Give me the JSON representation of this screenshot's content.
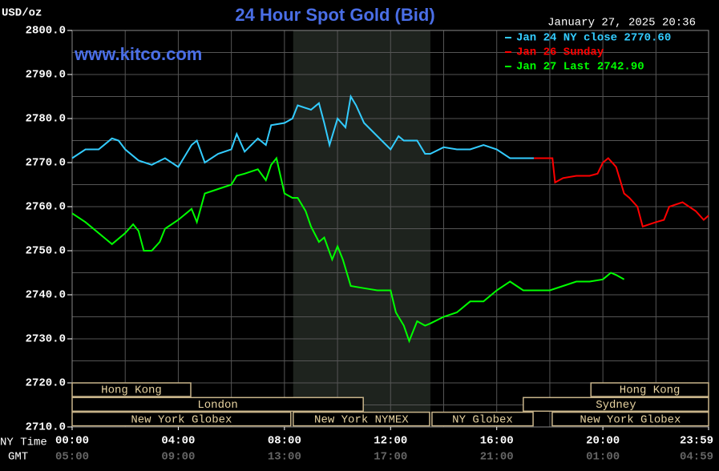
{
  "chart_data": {
    "type": "line",
    "title": "24 Hour Spot Gold (Bid)",
    "y_label": "USD/oz",
    "timestamp": "January 27, 2025 20:36",
    "watermark": "www.kitco.com",
    "x_label": "NY Time",
    "x2_label": "GMT",
    "xlim": [
      0,
      23.983
    ],
    "ylim": [
      2710,
      2800
    ],
    "xticks": [
      {
        "value": 0,
        "label": "00:00"
      },
      {
        "value": 4,
        "label": "04:00"
      },
      {
        "value": 8,
        "label": "08:00"
      },
      {
        "value": 12,
        "label": "12:00"
      },
      {
        "value": 16,
        "label": "16:00"
      },
      {
        "value": 20,
        "label": "20:00"
      },
      {
        "value": 23.983,
        "label": "23:59"
      }
    ],
    "x2ticks": [
      {
        "value": 0,
        "label": "05:00"
      },
      {
        "value": 4,
        "label": "09:00"
      },
      {
        "value": 8,
        "label": "13:00"
      },
      {
        "value": 12,
        "label": "17:00"
      },
      {
        "value": 16,
        "label": "21:00"
      },
      {
        "value": 20,
        "label": "01:00"
      },
      {
        "value": 23.983,
        "label": "04:59"
      }
    ],
    "yticks": [
      {
        "value": 2710,
        "label": "2710.0"
      },
      {
        "value": 2720,
        "label": "2720.0"
      },
      {
        "value": 2730,
        "label": "2730.0"
      },
      {
        "value": 2740,
        "label": "2740.0"
      },
      {
        "value": 2750,
        "label": "2750.0"
      },
      {
        "value": 2760,
        "label": "2760.0"
      },
      {
        "value": 2770,
        "label": "2770.0"
      },
      {
        "value": 2780,
        "label": "2780.0"
      },
      {
        "value": 2790,
        "label": "2790.0"
      },
      {
        "value": 2800,
        "label": "2800.0"
      }
    ],
    "x_grid": [
      2,
      4,
      6,
      8,
      10,
      12,
      14,
      16,
      18,
      20,
      22
    ],
    "y_grid": [
      2715,
      2720,
      2725,
      2730,
      2735,
      2740,
      2745,
      2750,
      2755,
      2760,
      2765,
      2770,
      2775,
      2780,
      2785,
      2790,
      2795
    ],
    "grid": true,
    "shaded_range": [
      8.33,
      13.5
    ],
    "sessions": [
      {
        "label": "Hong Kong",
        "row": 0,
        "start": 0,
        "end": 4.47
      },
      {
        "label": "Hong Kong",
        "row": 0,
        "start": 19.55,
        "end": 23.983
      },
      {
        "label": "London",
        "row": 1,
        "start": 0,
        "end": 10.97
      },
      {
        "label": "Sydney",
        "row": 1,
        "start": 17.0,
        "end": 23.983
      },
      {
        "label": "New York Globex",
        "row": 2,
        "start": 0,
        "end": 8.24
      },
      {
        "label": "New York NYMEX",
        "row": 2,
        "start": 8.33,
        "end": 13.47
      },
      {
        "label": "NY Globex",
        "row": 2,
        "start": 13.56,
        "end": 17.37
      },
      {
        "label": "New York Globex",
        "row": 2,
        "start": 18.09,
        "end": 23.983
      }
    ],
    "series": [
      {
        "name": "Jan 24 NY close 2770.60",
        "color": "#33ccff",
        "x": [
          0,
          0.5,
          1,
          1.5,
          1.75,
          2,
          2.5,
          3,
          3.5,
          4,
          4.5,
          4.7,
          5,
          5.5,
          6,
          6.2,
          6.5,
          7,
          7.3,
          7.5,
          8,
          8.3,
          8.5,
          9,
          9.3,
          9.5,
          9.7,
          10,
          10.3,
          10.5,
          10.7,
          11,
          11.5,
          12,
          12.3,
          12.5,
          13,
          13.3,
          13.5,
          14,
          14.5,
          15,
          15.5,
          16,
          16.5,
          17,
          17.4
        ],
        "values": [
          2771,
          2773,
          2773,
          2775.5,
          2775,
          2773,
          2770.5,
          2769.5,
          2771,
          2769,
          2774,
          2775,
          2770,
          2772,
          2773,
          2776.5,
          2772.5,
          2775.5,
          2774,
          2778.5,
          2779,
          2780,
          2783,
          2782,
          2783.5,
          2779,
          2774,
          2780,
          2778,
          2785,
          2783,
          2779,
          2776,
          2773,
          2776,
          2775,
          2775,
          2772,
          2772,
          2773.5,
          2773,
          2773,
          2774,
          2773,
          2771,
          2771,
          2771
        ]
      },
      {
        "name": "Jan 26 Sunday",
        "color": "#ff0000",
        "x": [
          17.4,
          18.1,
          18.2,
          18.5,
          19,
          19.5,
          19.8,
          20,
          20.2,
          20.5,
          20.8,
          21,
          21.3,
          21.5,
          22,
          22.3,
          22.5,
          23,
          23.5,
          23.8,
          23.983
        ],
        "values": [
          2771,
          2771,
          2765.5,
          2766.5,
          2767,
          2767,
          2767.5,
          2770,
          2771,
          2769,
          2763,
          2762,
          2760,
          2755.5,
          2756.5,
          2757,
          2760,
          2761,
          2759,
          2757,
          2758
        ]
      },
      {
        "name": "Jan 27 Last 2742.90",
        "color": "#00ff00",
        "x": [
          0,
          0.5,
          1,
          1.5,
          2,
          2.3,
          2.5,
          2.7,
          3,
          3.3,
          3.5,
          4,
          4.5,
          4.7,
          5,
          5.5,
          6,
          6.2,
          6.5,
          7,
          7.3,
          7.5,
          7.7,
          8,
          8.3,
          8.5,
          8.8,
          9,
          9.3,
          9.5,
          9.8,
          10,
          10.2,
          10.5,
          11,
          11.5,
          12,
          12.2,
          12.5,
          12.7,
          13,
          13.3,
          13.5,
          14,
          14.5,
          15,
          15.5,
          16,
          16.5,
          17,
          17.5,
          18,
          18.5,
          19,
          19.5,
          20,
          20.3,
          20.5,
          20.8
        ],
        "values": [
          2758.5,
          2756.5,
          2754,
          2751.5,
          2754,
          2756,
          2754.5,
          2750,
          2750,
          2752,
          2755,
          2757,
          2759.5,
          2756.5,
          2763,
          2764,
          2765,
          2767,
          2767.5,
          2768.5,
          2766,
          2769.5,
          2771,
          2763,
          2762,
          2762,
          2759,
          2755.5,
          2752,
          2753,
          2748,
          2751,
          2748,
          2742,
          2741.5,
          2741,
          2741,
          2736,
          2733,
          2729.5,
          2734,
          2733,
          2733.5,
          2735,
          2736,
          2738.5,
          2738.5,
          2741,
          2743,
          2741,
          2741,
          2741,
          2742,
          2743,
          2743,
          2743.5,
          2745,
          2744.5,
          2743.5
        ]
      }
    ]
  }
}
